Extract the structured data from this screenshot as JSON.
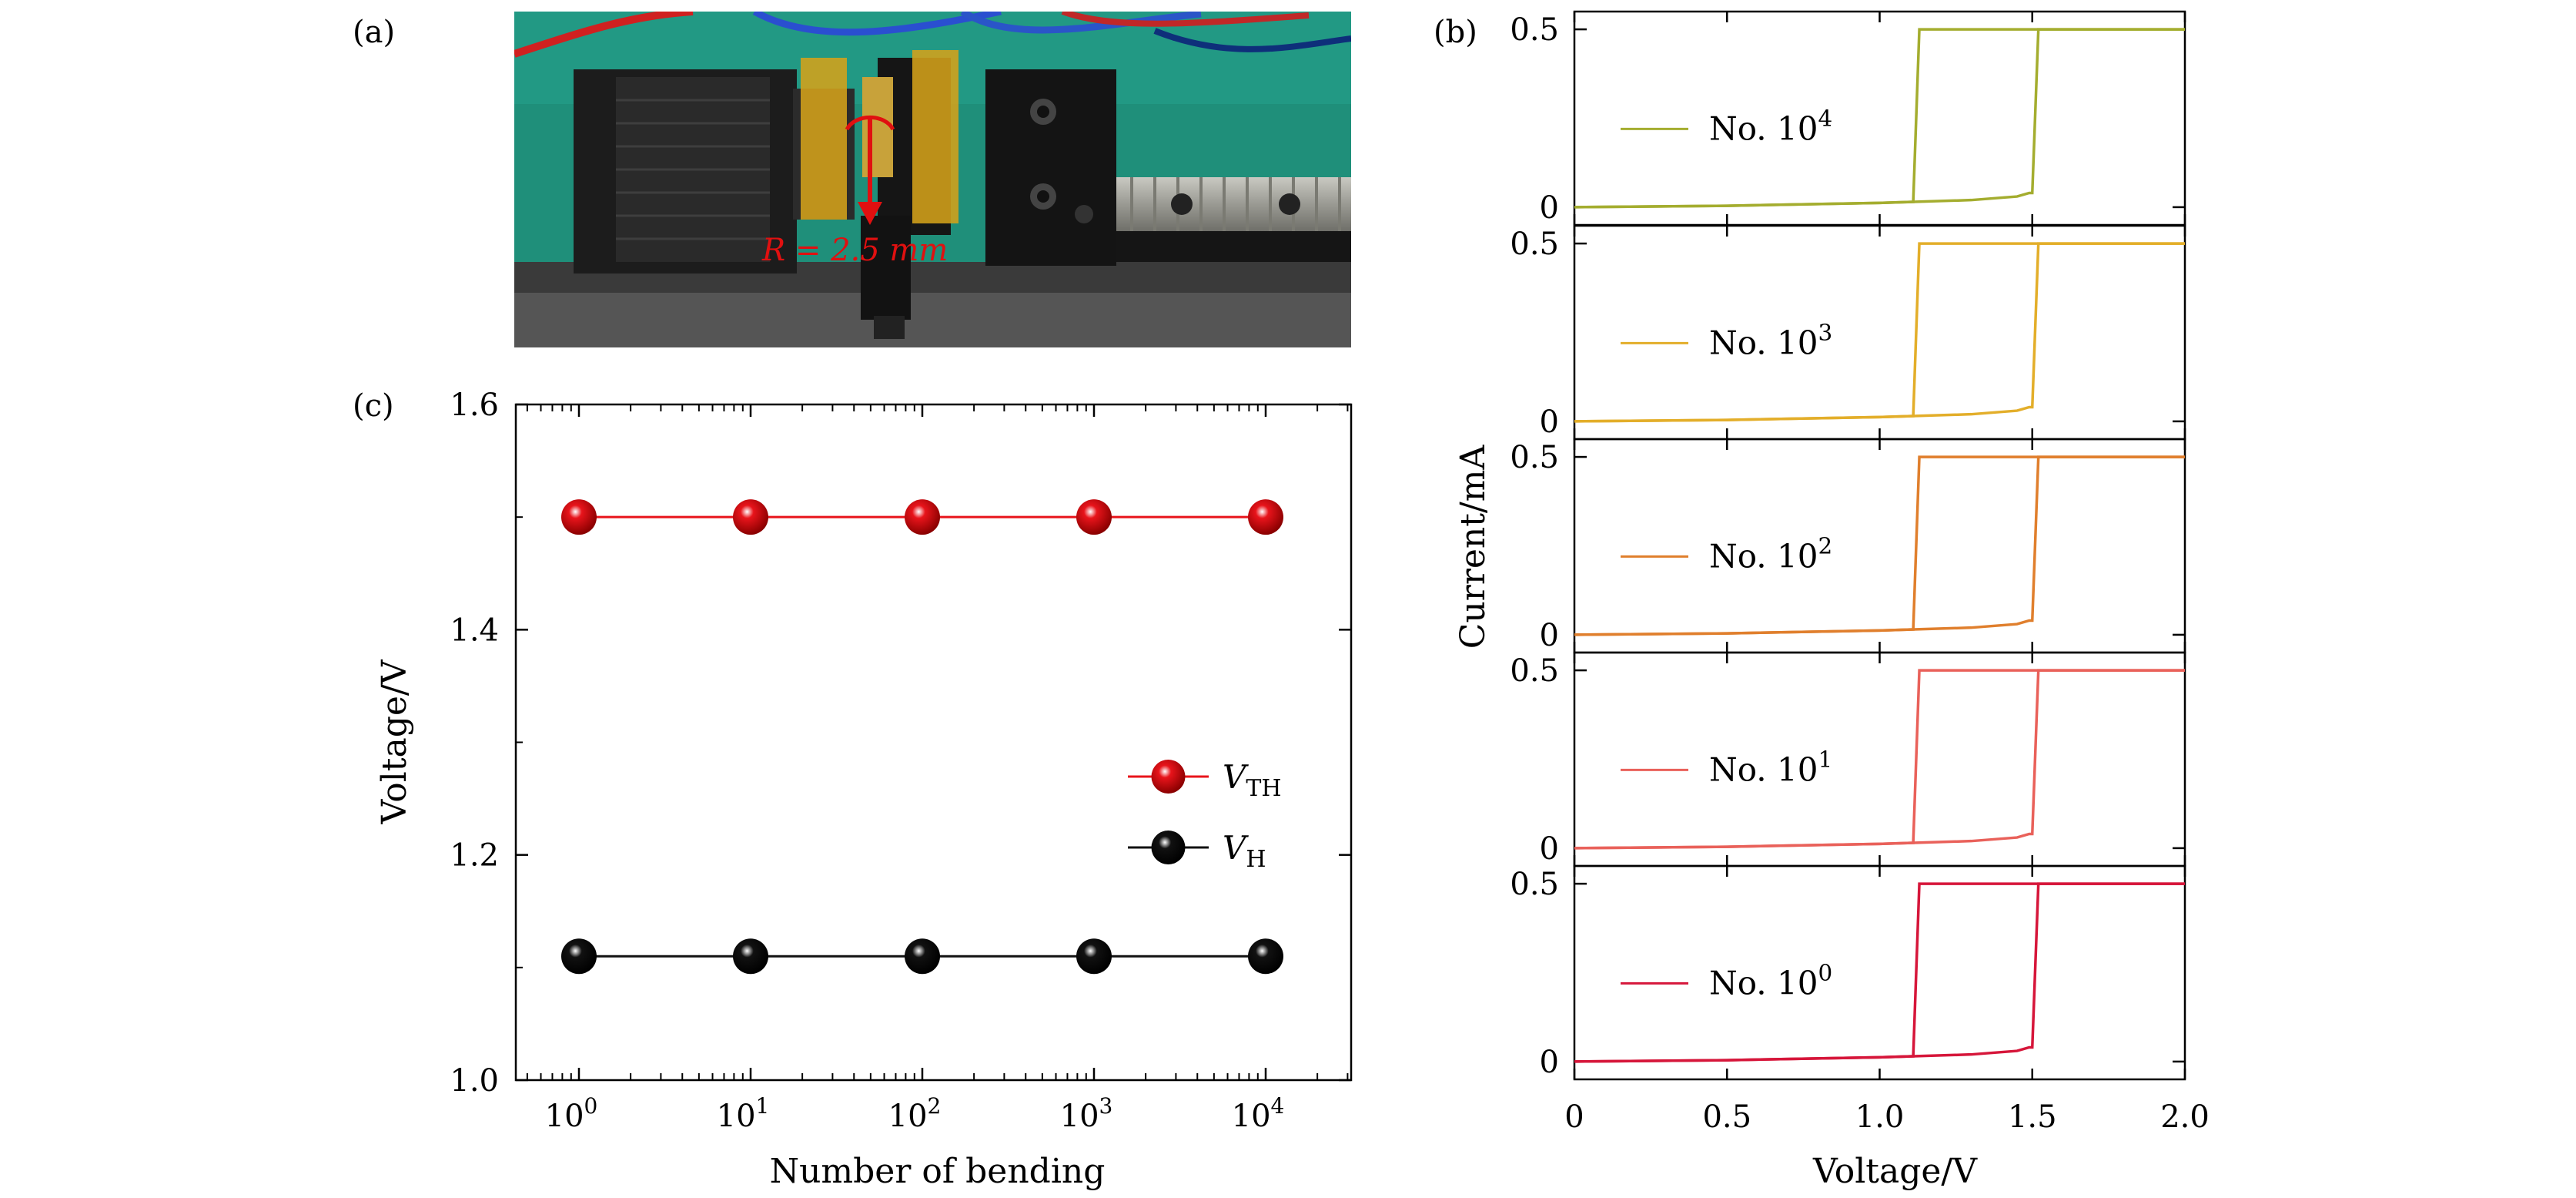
{
  "panel_labels": {
    "a": "(a)",
    "b": "(b)",
    "c": "(c)"
  },
  "photo": {
    "radius_label": "R = 2.5 mm",
    "colors": {
      "backdrop": "#1f8f7a",
      "motor": "#1c1c1c",
      "tape": "#d4a21a",
      "arrow": "#e01010",
      "rail": "#a8a8a0"
    }
  },
  "chart_data": [
    {
      "id": "c",
      "type": "line",
      "title": "",
      "xlabel": "Number of bending",
      "ylabel": "Voltage/V",
      "xscale": "log",
      "x": [
        1,
        10,
        100,
        1000,
        10000
      ],
      "x_tick_labels": [
        {
          "base": "10",
          "exp": "0"
        },
        {
          "base": "10",
          "exp": "1"
        },
        {
          "base": "10",
          "exp": "2"
        },
        {
          "base": "10",
          "exp": "3"
        },
        {
          "base": "10",
          "exp": "4"
        }
      ],
      "ylim": [
        1.0,
        1.6
      ],
      "y_ticks": [
        1.0,
        1.2,
        1.4,
        1.6
      ],
      "y_tick_labels": [
        "1.0",
        "1.2",
        "1.4",
        "1.6"
      ],
      "series": [
        {
          "name": "V_TH",
          "label_main": "V",
          "label_sub": "TH",
          "values": [
            1.5,
            1.5,
            1.5,
            1.5,
            1.5
          ],
          "color": "#e8141b"
        },
        {
          "name": "V_H",
          "label_main": "V",
          "label_sub": "H",
          "values": [
            1.11,
            1.11,
            1.11,
            1.11,
            1.11
          ],
          "color": "#111111"
        }
      ],
      "legend_position": "center-right"
    },
    {
      "id": "b",
      "type": "line",
      "xlabel": "Voltage/V",
      "ylabel": "Current/mA",
      "xlim": [
        0,
        2.0
      ],
      "x_ticks": [
        0,
        0.5,
        1.0,
        1.5,
        2.0
      ],
      "x_tick_labels": [
        "0",
        "0.5",
        "1.0",
        "1.5",
        "2.0"
      ],
      "ylim": [
        -0.05,
        0.55
      ],
      "y_tick_labels": [
        "0",
        "0.5"
      ],
      "sweep": {
        "forward_x": [
          0,
          0.5,
          1.0,
          1.3,
          1.45,
          1.49,
          1.5,
          1.52,
          2.0
        ],
        "forward_y": [
          0,
          0.004,
          0.012,
          0.02,
          0.03,
          0.04,
          0.04,
          0.5,
          0.5
        ],
        "reverse_x": [
          2.0,
          1.13,
          1.11,
          1.0,
          0.5,
          0
        ],
        "reverse_y": [
          0.5,
          0.5,
          0.015,
          0.012,
          0.004,
          0
        ]
      },
      "subplots": [
        {
          "legend": "No. 10",
          "exp": "4",
          "color": "#a4ad2f"
        },
        {
          "legend": "No. 10",
          "exp": "3",
          "color": "#e3ae2a"
        },
        {
          "legend": "No. 10",
          "exp": "2",
          "color": "#e07f2d"
        },
        {
          "legend": "No. 10",
          "exp": "1",
          "color": "#e9615a"
        },
        {
          "legend": "No. 10",
          "exp": "0",
          "color": "#d6163a"
        }
      ],
      "legend_position": "left"
    }
  ]
}
